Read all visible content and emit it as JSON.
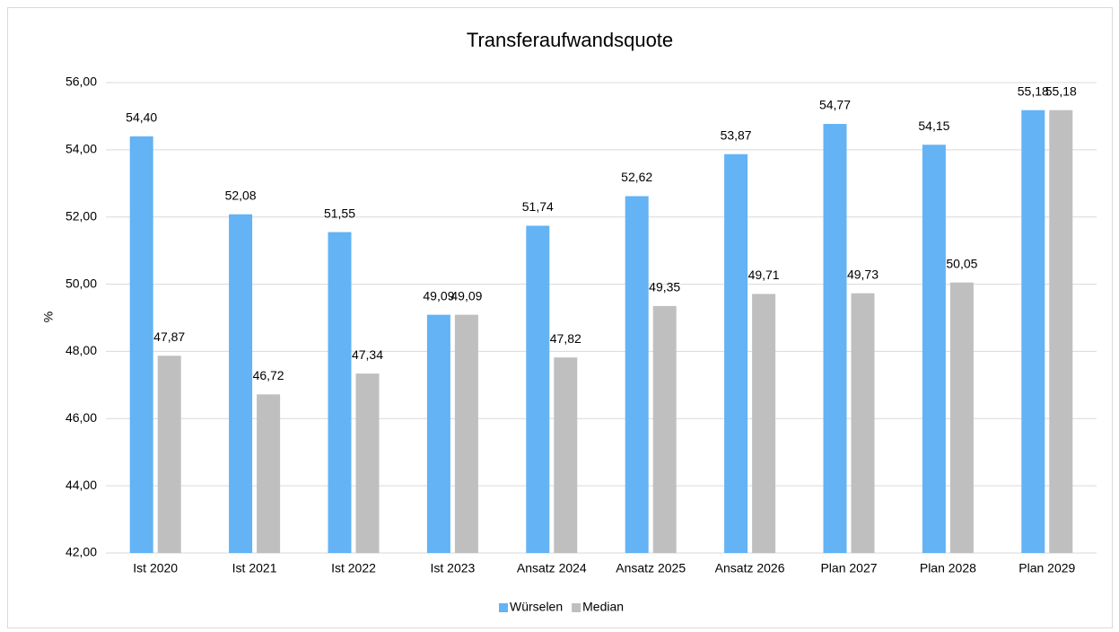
{
  "chart_data": {
    "type": "bar",
    "title": "Transferaufwandsquote",
    "y_label": "%",
    "categories": [
      "Ist 2020",
      "Ist 2021",
      "Ist 2022",
      "Ist 2023",
      "Ansatz 2024",
      "Ansatz 2025",
      "Ansatz 2026",
      "Plan 2027",
      "Plan 2028",
      "Plan 2029"
    ],
    "series": [
      {
        "name": "Würselen",
        "color": "#63b3f5",
        "values": [
          54.4,
          52.08,
          51.55,
          49.09,
          51.74,
          52.62,
          53.87,
          54.77,
          54.15,
          55.18
        ],
        "value_labels": [
          "54,40",
          "52,08",
          "51,55",
          "49,09",
          "51,74",
          "52,62",
          "53,87",
          "54,77",
          "54,15",
          "55,18"
        ]
      },
      {
        "name": "Median",
        "color": "#bfbfbf",
        "values": [
          47.87,
          46.72,
          47.34,
          49.09,
          47.82,
          49.35,
          49.71,
          49.73,
          50.05,
          55.18
        ],
        "value_labels": [
          "47,87",
          "46,72",
          "47,34",
          "49,09",
          "47,82",
          "49,35",
          "49,71",
          "49,73",
          "50,05",
          "55,18"
        ]
      }
    ],
    "ylim": [
      42,
      56
    ],
    "yticks": [
      {
        "value": 42,
        "label": "42,00"
      },
      {
        "value": 44,
        "label": "44,00"
      },
      {
        "value": 46,
        "label": "46,00"
      },
      {
        "value": 48,
        "label": "48,00"
      },
      {
        "value": 50,
        "label": "50,00"
      },
      {
        "value": 52,
        "label": "52,00"
      },
      {
        "value": 54,
        "label": "54,00"
      },
      {
        "value": 56,
        "label": "56,00"
      }
    ],
    "grid": true,
    "legend": "bottom"
  }
}
